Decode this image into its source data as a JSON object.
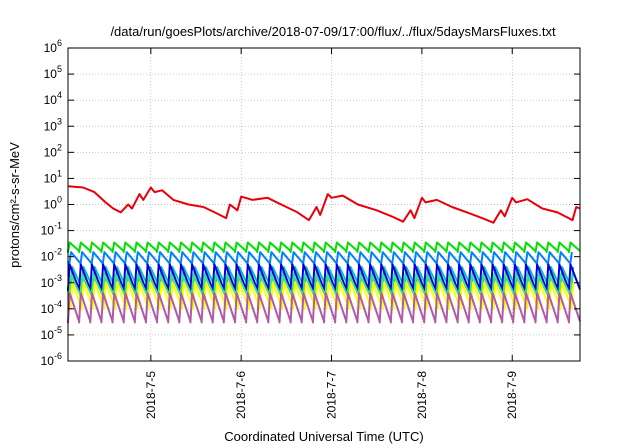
{
  "chart_data": {
    "type": "line",
    "title": "/data/run/goesPlots/archive/2018-07-09/17:00/flux/../flux/5daysMarsFluxes.txt",
    "xlabel": "Coordinated Universal Time (UTC)",
    "ylabel": "protons/cm²-s-sr-MeV",
    "yscale": "log",
    "ylim": [
      1e-06,
      1000000.0
    ],
    "xlim": [
      "2018-07-04 02:00",
      "2018-07-09 18:00"
    ],
    "x_ticks": [
      "2018-7-5",
      "2018-7-6",
      "2018-7-7",
      "2018-7-8",
      "2018-7-9"
    ],
    "y_ticks": [
      {
        "base": "10",
        "exp": "6",
        "value": 1000000.0
      },
      {
        "base": "10",
        "exp": "5",
        "value": 100000.0
      },
      {
        "base": "10",
        "exp": "4",
        "value": 10000.0
      },
      {
        "base": "10",
        "exp": "3",
        "value": 1000.0
      },
      {
        "base": "10",
        "exp": "2",
        "value": 100.0
      },
      {
        "base": "10",
        "exp": "1",
        "value": 10.0
      },
      {
        "base": "10",
        "exp": "0",
        "value": 1
      },
      {
        "base": "10",
        "exp": "-1",
        "value": 0.1
      },
      {
        "base": "10",
        "exp": "-2",
        "value": 0.01
      },
      {
        "base": "10",
        "exp": "-3",
        "value": 0.001
      },
      {
        "base": "10",
        "exp": "-4",
        "value": 0.0001
      },
      {
        "base": "10",
        "exp": "-5",
        "value": 1e-05
      },
      {
        "base": "10",
        "exp": "-6",
        "value": 1e-06
      }
    ],
    "grid": true,
    "colors": [
      "#e8000b",
      "#00e000",
      "#0080ff",
      "#00c0c0",
      "#0000e0",
      "#40e080",
      "#ffff00",
      "#b05aa8"
    ],
    "series": [
      {
        "color": "#e8000b",
        "x": [
          "2018-07-04 02:00",
          "2018-07-04 06:00",
          "2018-07-04 09:00",
          "2018-07-04 12:00",
          "2018-07-04 14:00",
          "2018-07-04 16:00",
          "2018-07-04 18:00",
          "2018-07-04 19:00",
          "2018-07-04 21:00",
          "2018-07-04 22:00",
          "2018-07-05 00:00",
          "2018-07-05 01:00",
          "2018-07-05 03:00",
          "2018-07-05 06:00",
          "2018-07-05 10:00",
          "2018-07-05 14:00",
          "2018-07-05 17:00",
          "2018-07-05 20:00",
          "2018-07-05 21:00",
          "2018-07-05 23:00",
          "2018-07-06 00:00",
          "2018-07-06 03:00",
          "2018-07-06 07:00",
          "2018-07-06 12:00",
          "2018-07-06 15:00",
          "2018-07-06 18:00",
          "2018-07-06 20:00",
          "2018-07-06 21:00",
          "2018-07-06 23:00",
          "2018-07-07 00:00",
          "2018-07-07 03:00",
          "2018-07-07 07:00",
          "2018-07-07 12:00",
          "2018-07-07 16:00",
          "2018-07-07 19:00",
          "2018-07-07 21:00",
          "2018-07-07 22:00",
          "2018-07-08 00:00",
          "2018-07-08 01:00",
          "2018-07-08 04:00",
          "2018-07-08 08:00",
          "2018-07-08 12:00",
          "2018-07-08 16:00",
          "2018-07-08 19:00",
          "2018-07-08 21:00",
          "2018-07-08 22:00",
          "2018-07-09 00:00",
          "2018-07-09 01:00",
          "2018-07-09 04:00",
          "2018-07-09 08:00",
          "2018-07-09 12:00",
          "2018-07-09 15:00",
          "2018-07-09 16:00",
          "2018-07-09 17:00",
          "2018-07-09 18:00"
        ],
        "values": [
          5.0,
          4.5,
          3.0,
          1.2,
          0.7,
          0.5,
          1.0,
          0.7,
          2.5,
          1.5,
          4.5,
          3.0,
          3.5,
          1.5,
          1.0,
          0.8,
          0.5,
          0.3,
          1.0,
          0.6,
          2.0,
          1.5,
          1.8,
          0.8,
          0.5,
          0.25,
          0.8,
          0.4,
          2.5,
          1.8,
          2.2,
          1.0,
          0.6,
          0.35,
          0.22,
          0.6,
          0.3,
          1.8,
          1.2,
          1.5,
          0.8,
          0.5,
          0.3,
          0.2,
          0.6,
          0.35,
          1.8,
          1.2,
          1.6,
          0.7,
          0.5,
          0.3,
          0.25,
          0.8,
          0.7
        ]
      },
      {
        "color": "#00e000",
        "min": 0.015,
        "max": 0.035,
        "cycles": 46
      },
      {
        "color": "#0080ff",
        "min": 0.005,
        "max": 0.015,
        "cycles": 46
      },
      {
        "color": "#00c0c0",
        "min": 0.0006,
        "max": 0.004,
        "cycles": 46
      },
      {
        "color": "#0000e0",
        "min": 0.0005,
        "max": 0.005,
        "cycles": 46
      },
      {
        "color": "#40e080",
        "min": 0.0003,
        "max": 0.002,
        "cycles": 46
      },
      {
        "color": "#ffff00",
        "min": 0.0001,
        "max": 0.001,
        "cycles": 46
      },
      {
        "color": "#b05aa8",
        "min": 3e-05,
        "max": 0.0004,
        "cycles": 46
      }
    ]
  }
}
